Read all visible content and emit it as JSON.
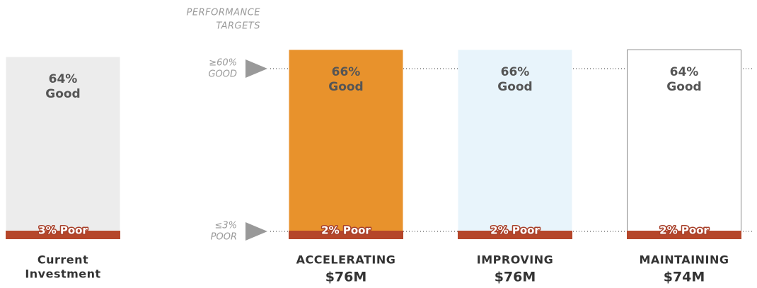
{
  "header": {
    "lines": [
      "PERFORMANCE",
      "TARGETS"
    ]
  },
  "targets": [
    {
      "lines": [
        "≥60%",
        "GOOD"
      ]
    },
    {
      "lines": [
        "≤3%",
        "POOR"
      ]
    }
  ],
  "scenarios": [
    {
      "good": "64%",
      "good_label": "Good",
      "poor": "3% Poor",
      "name_lines": [
        "Current",
        "Investment"
      ]
    },
    {
      "good": "66%",
      "good_label": "Good",
      "poor": "2% Poor",
      "name_lines": [
        "ACCELERATING"
      ],
      "amount": "$76M"
    },
    {
      "good": "66%",
      "good_label": "Good",
      "poor": "2% Poor",
      "name_lines": [
        "IMPROVING"
      ],
      "amount": "$76M"
    },
    {
      "good": "64%",
      "good_label": "Good",
      "poor": "2% Poor",
      "name_lines": [
        "MAINTAINING"
      ],
      "amount": "$74M"
    }
  ]
}
